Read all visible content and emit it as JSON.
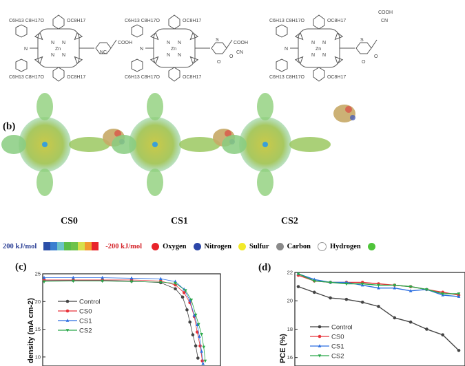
{
  "panels": {
    "b": "(b)",
    "c": "(c)",
    "d": "(d)"
  },
  "molecules": [
    {
      "name": "CS0",
      "labels": {
        "alkyl_top": "C6H13 C8H17O",
        "alkoxy_top": "OC8H17",
        "alkyl_bottom": "C6H13 C8H17O",
        "alkoxy_bottom": "OC8H17",
        "metal": "Zn",
        "n": "N",
        "anchor1": "COOH",
        "anchor2": "NC"
      }
    },
    {
      "name": "CS1",
      "labels": {
        "alkyl_top": "C6H13 C8H17O",
        "alkoxy_top": "OC8H17",
        "alkyl_bottom": "C6H13 C8H17O",
        "alkoxy_bottom": "OC8H17",
        "metal": "Zn",
        "n": "N",
        "anchor1": "COOH",
        "anchor2": "CN",
        "s": "S",
        "o": "O"
      }
    },
    {
      "name": "CS2",
      "labels": {
        "alkyl_top": "C6H13 C8H17O",
        "alkoxy_top": "OC8H17",
        "alkyl_bottom": "C6H13 C8H17O",
        "alkoxy_bottom": "OC8H17",
        "metal": "Zn",
        "n": "N",
        "anchor1": "COOH",
        "anchor2": "CN",
        "s": "S",
        "o": "O"
      }
    }
  ],
  "esp_legend": {
    "max_label": "200 kJ/mol",
    "min_label": "-200 kJ/mol",
    "scale_colors": [
      "#2b4fa8",
      "#3a7fd0",
      "#6cc3c8",
      "#5bbd4a",
      "#6ec24a",
      "#d7e04a",
      "#f29a2e",
      "#e8232a"
    ],
    "atoms": [
      {
        "label": "Oxygen",
        "color": "#e8232a"
      },
      {
        "label": "Nitrogen",
        "color": "#2b46a8"
      },
      {
        "label": "Sulfur",
        "color": "#f2ea2a"
      },
      {
        "label": "Carbon",
        "color": "#8a8a8a"
      },
      {
        "label": "Hydrogen",
        "color": "#ffffff"
      },
      {
        "label": "",
        "color": "#4fc43a"
      }
    ]
  },
  "chart_data": [
    {
      "type": "line",
      "panel": "(c)",
      "ylabel": "density (mA cm-2)",
      "ylim": [
        8,
        25
      ],
      "yticks": [
        10,
        15,
        20,
        25
      ],
      "xlim": [
        0,
        1.2
      ],
      "legend_placement": "upper-left",
      "series": [
        {
          "name": "Control",
          "color": "#444444",
          "marker": "circle",
          "points": [
            [
              0,
              23.8
            ],
            [
              0.2,
              23.8
            ],
            [
              0.4,
              23.8
            ],
            [
              0.6,
              23.7
            ],
            [
              0.8,
              23.4
            ],
            [
              0.9,
              22.3
            ],
            [
              0.95,
              20.8
            ],
            [
              0.98,
              18.5
            ],
            [
              1.0,
              16.3
            ],
            [
              1.02,
              14
            ],
            [
              1.04,
              12
            ],
            [
              1.055,
              9.8
            ]
          ]
        },
        {
          "name": "CS0",
          "color": "#e8333a",
          "marker": "circle",
          "points": [
            [
              0,
              23.9
            ],
            [
              0.2,
              23.9
            ],
            [
              0.4,
              23.9
            ],
            [
              0.6,
              23.9
            ],
            [
              0.8,
              23.7
            ],
            [
              0.9,
              23.0
            ],
            [
              0.96,
              21.6
            ],
            [
              1.0,
              19.8
            ],
            [
              1.03,
              17.3
            ],
            [
              1.05,
              14.5
            ],
            [
              1.07,
              12
            ],
            [
              1.085,
              9.3
            ]
          ]
        },
        {
          "name": "CS1",
          "color": "#2a6de0",
          "marker": "triangle-up",
          "points": [
            [
              0,
              24.3
            ],
            [
              0.2,
              24.3
            ],
            [
              0.4,
              24.3
            ],
            [
              0.6,
              24.2
            ],
            [
              0.8,
              24.1
            ],
            [
              0.9,
              23.6
            ],
            [
              0.96,
              22.2
            ],
            [
              1.0,
              20.2
            ],
            [
              1.03,
              17.5
            ],
            [
              1.05,
              15.8
            ],
            [
              1.065,
              13.7
            ],
            [
              1.08,
              11
            ],
            [
              1.09,
              8.8
            ]
          ]
        },
        {
          "name": "CS2",
          "color": "#2aa84a",
          "marker": "triangle-down",
          "points": [
            [
              0,
              23.6
            ],
            [
              0.2,
              23.7
            ],
            [
              0.4,
              23.7
            ],
            [
              0.6,
              23.6
            ],
            [
              0.8,
              23.5
            ],
            [
              0.9,
              23.3
            ],
            [
              0.97,
              22
            ],
            [
              1.01,
              20.3
            ],
            [
              1.04,
              17.6
            ],
            [
              1.06,
              15.9
            ],
            [
              1.08,
              14.1
            ],
            [
              1.095,
              11.8
            ],
            [
              1.105,
              9.3
            ]
          ]
        }
      ]
    },
    {
      "type": "line",
      "panel": "(d)",
      "ylabel": "PCE (%)",
      "ylim": [
        15.5,
        22
      ],
      "yticks": [
        16,
        18,
        20,
        22
      ],
      "legend_placement": "lower-left",
      "series": [
        {
          "name": "Control",
          "color": "#444444",
          "marker": "circle",
          "values": [
            21.0,
            20.6,
            20.2,
            20.1,
            19.9,
            19.6,
            18.8,
            18.5,
            18.0,
            17.6,
            16.5
          ]
        },
        {
          "name": "CS0",
          "color": "#e8333a",
          "marker": "circle",
          "values": [
            21.8,
            21.4,
            21.3,
            21.3,
            21.3,
            21.2,
            21.1,
            21.0,
            20.8,
            20.6,
            20.4
          ]
        },
        {
          "name": "CS1",
          "color": "#2a6de0",
          "marker": "triangle-up",
          "values": [
            21.9,
            21.5,
            21.3,
            21.3,
            21.1,
            20.9,
            20.9,
            20.7,
            20.8,
            20.4,
            20.3
          ]
        },
        {
          "name": "CS2",
          "color": "#2aa84a",
          "marker": "triangle-down",
          "values": [
            21.9,
            21.4,
            21.3,
            21.2,
            21.2,
            21.1,
            21.1,
            21.0,
            20.8,
            20.5,
            20.5
          ]
        }
      ]
    }
  ]
}
